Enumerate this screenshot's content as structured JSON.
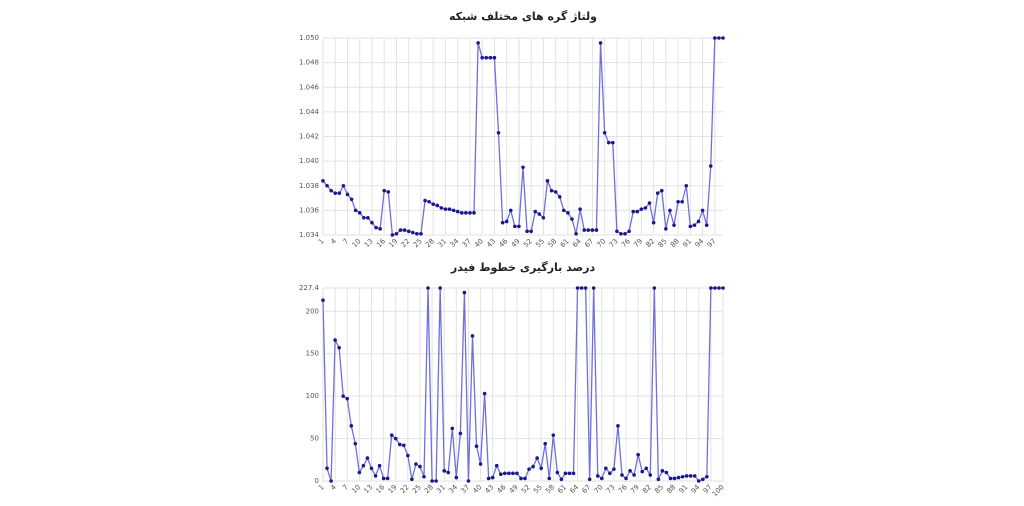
{
  "chart_data": [
    {
      "type": "line",
      "title": "ولتاژ گره های مختلف شبکه",
      "color": "#6f6fe0",
      "marker_color": "#1a1a8c",
      "grid": true,
      "x": [
        1,
        2,
        3,
        4,
        5,
        6,
        7,
        8,
        9,
        10,
        11,
        12,
        13,
        14,
        15,
        16,
        17,
        18,
        19,
        20,
        21,
        22,
        23,
        24,
        25,
        26,
        27,
        28,
        29,
        30,
        31,
        32,
        33,
        34,
        35,
        36,
        37,
        38,
        39,
        40,
        41,
        42,
        43,
        44,
        45,
        46,
        47,
        48,
        49,
        50,
        51,
        52,
        53,
        54,
        55,
        56,
        57,
        58,
        59,
        60,
        61,
        62,
        63,
        64,
        65,
        66,
        67,
        68,
        69,
        70,
        71,
        72,
        73,
        74,
        75,
        76,
        77,
        78,
        79,
        80,
        81,
        82,
        83,
        84,
        85,
        86,
        87,
        88,
        89,
        90,
        91,
        92,
        93,
        94,
        95,
        96,
        97,
        98,
        99
      ],
      "values": [
        1.0384,
        1.038,
        1.0376,
        1.0374,
        1.0374,
        1.038,
        1.0373,
        1.0369,
        1.036,
        1.0358,
        1.0354,
        1.0354,
        1.035,
        1.0346,
        1.0345,
        1.0376,
        1.0375,
        1.034,
        1.0341,
        1.0344,
        1.0344,
        1.0343,
        1.0342,
        1.0341,
        1.0341,
        1.0368,
        1.0367,
        1.0365,
        1.0364,
        1.0362,
        1.0361,
        1.0361,
        1.036,
        1.0359,
        1.0358,
        1.0358,
        1.0358,
        1.0358,
        1.0496,
        1.0484,
        1.0484,
        1.0484,
        1.0484,
        1.0423,
        1.035,
        1.0351,
        1.036,
        1.0347,
        1.0347,
        1.0395,
        1.0343,
        1.0343,
        1.0359,
        1.0357,
        1.0354,
        1.0384,
        1.0376,
        1.0375,
        1.0371,
        1.036,
        1.0358,
        1.0353,
        1.0341,
        1.0361,
        1.0344,
        1.0344,
        1.0344,
        1.0344,
        1.0496,
        1.0423,
        1.0415,
        1.0415,
        1.0343,
        1.0341,
        1.0341,
        1.0343,
        1.0359,
        1.0359,
        1.0361,
        1.0362,
        1.0366,
        1.035,
        1.0374,
        1.0376,
        1.0345,
        1.036,
        1.0348,
        1.0367,
        1.0367,
        1.038,
        1.0347,
        1.0348,
        1.0351,
        1.036,
        1.0348,
        1.0396,
        1.05,
        1.05,
        1.05
      ],
      "xlim": [
        1,
        99
      ],
      "xticks": [
        1,
        4,
        7,
        10,
        13,
        16,
        19,
        22,
        25,
        28,
        31,
        34,
        37,
        40,
        43,
        46,
        49,
        52,
        55,
        58,
        61,
        64,
        67,
        70,
        73,
        76,
        79,
        82,
        85,
        88,
        91,
        94,
        97
      ],
      "ylim": [
        1.034,
        1.05
      ],
      "yticks": [
        1.034,
        1.036,
        1.038,
        {
          "value": 1.04,
          "label": "1.040"
        },
        1.042,
        1.044,
        1.046,
        1.048,
        {
          "value": 1.05,
          "label": "1.050"
        }
      ]
    },
    {
      "type": "line",
      "title": "درصد بارگیری خطوط فیدر",
      "color": "#6f6fe0",
      "marker_color": "#1a1a8c",
      "grid": true,
      "x": [
        1,
        2,
        3,
        4,
        5,
        6,
        7,
        8,
        9,
        10,
        11,
        12,
        13,
        14,
        15,
        16,
        17,
        18,
        19,
        20,
        21,
        22,
        23,
        24,
        25,
        26,
        27,
        28,
        29,
        30,
        31,
        32,
        33,
        34,
        35,
        36,
        37,
        38,
        39,
        40,
        41,
        42,
        43,
        44,
        45,
        46,
        47,
        48,
        49,
        50,
        51,
        52,
        53,
        54,
        55,
        56,
        57,
        58,
        59,
        60,
        61,
        62,
        63,
        64,
        65,
        66,
        67,
        68,
        69,
        70,
        71,
        72,
        73,
        74,
        75,
        76,
        77,
        78,
        79,
        80,
        81,
        82,
        83,
        84,
        85,
        86,
        87,
        88,
        89,
        90,
        91,
        92,
        93,
        94,
        95,
        96,
        97,
        98,
        99,
        100
      ],
      "values": [
        213,
        15,
        0,
        166,
        157,
        100,
        97,
        65,
        44,
        10,
        18,
        27,
        15,
        6,
        18,
        3,
        3,
        54,
        50,
        43,
        42,
        30,
        2,
        20,
        17,
        5,
        227.4,
        0,
        0,
        227.4,
        12,
        10,
        62,
        4,
        56,
        222,
        0,
        171,
        41,
        20,
        103,
        3,
        4,
        18,
        8,
        9,
        9,
        9,
        9,
        3,
        3,
        14,
        17,
        27,
        15,
        44,
        3,
        54,
        10,
        2,
        9,
        9,
        9,
        227.4,
        227.4,
        227.4,
        2,
        227.4,
        6,
        3,
        15,
        9,
        14,
        65,
        7,
        3,
        12,
        7,
        31,
        11,
        15,
        7,
        227.4,
        2,
        12,
        10,
        3,
        3,
        4,
        5,
        6,
        6,
        6,
        0,
        2,
        5,
        227.4,
        227.4,
        227.4,
        227.4
      ],
      "xlim": [
        1,
        100
      ],
      "xticks": [
        1,
        4,
        7,
        10,
        13,
        16,
        19,
        22,
        25,
        28,
        31,
        34,
        37,
        40,
        43,
        46,
        49,
        52,
        55,
        58,
        61,
        64,
        67,
        70,
        73,
        76,
        79,
        82,
        85,
        88,
        91,
        94,
        97,
        100
      ],
      "ylim": [
        0,
        227.4
      ],
      "yticks": [
        0,
        50,
        100,
        150,
        200,
        227.4
      ]
    }
  ]
}
